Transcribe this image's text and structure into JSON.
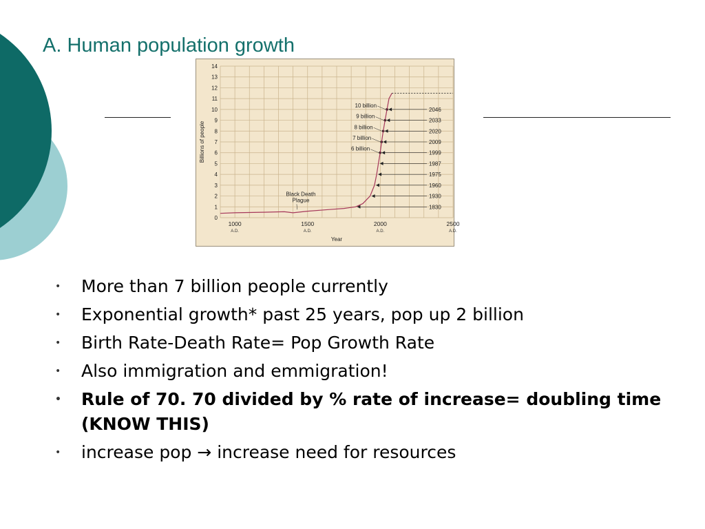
{
  "slide": {
    "title": "A. Human population growth",
    "bullets": [
      {
        "text": "More than 7 billion people currently",
        "bold": false
      },
      {
        "text": "Exponential growth*  past 25 years, pop up 2 billion",
        "bold": false
      },
      {
        "text": "Birth Rate-Death Rate= Pop Growth Rate",
        "bold": false
      },
      {
        "text": "Also immigration and emmigration!",
        "bold": false
      },
      {
        "text": "Rule of 70.  70 divided by % rate of increase= doubling time  (KNOW THIS)",
        "bold": true
      },
      {
        "text": "increase pop → increase need for resources",
        "bold": false
      }
    ],
    "colors": {
      "title": "#14706b",
      "dark_teal": "#0e6a66",
      "light_teal": "#9ccfd2",
      "chart_bg": "#f3e6cc",
      "curve": "#a5375a"
    }
  },
  "chart_data": {
    "type": "line",
    "xlabel": "Year",
    "ylabel": "Billions of people",
    "xlim": [
      900,
      2500
    ],
    "ylim": [
      0,
      14
    ],
    "x_ticks": [
      {
        "value": 1000,
        "label": "1000",
        "sub": "A.D."
      },
      {
        "value": 1500,
        "label": "1500",
        "sub": "A.D."
      },
      {
        "value": 2000,
        "label": "2000",
        "sub": "A.D."
      },
      {
        "value": 2500,
        "label": "2500",
        "sub": "A.D."
      }
    ],
    "y_ticks": [
      0,
      1,
      2,
      3,
      4,
      5,
      6,
      7,
      8,
      9,
      10,
      11,
      12,
      13,
      14
    ],
    "series": [
      {
        "values": [
          [
            900,
            0.4
          ],
          [
            1000,
            0.45
          ],
          [
            1200,
            0.5
          ],
          [
            1340,
            0.55
          ],
          [
            1400,
            0.45
          ],
          [
            1500,
            0.6
          ],
          [
            1650,
            0.75
          ],
          [
            1750,
            0.85
          ],
          [
            1830,
            1.0
          ],
          [
            1880,
            1.3
          ],
          [
            1930,
            2.0
          ],
          [
            1960,
            3.0
          ],
          [
            1975,
            4.0
          ],
          [
            1987,
            5.0
          ],
          [
            1999,
            6.0
          ],
          [
            2009,
            7.0
          ],
          [
            2020,
            8.0
          ],
          [
            2033,
            9.0
          ],
          [
            2046,
            10.0
          ],
          [
            2060,
            11.0
          ],
          [
            2080,
            11.5
          ]
        ]
      },
      {
        "values": [
          [
            2080,
            11.5
          ],
          [
            2500,
            11.5
          ]
        ],
        "style": "dashed"
      }
    ],
    "annotations": [
      {
        "text": "Black Death Plague",
        "x": 1340
      }
    ],
    "milestones": [
      {
        "year": "1830",
        "billions": 1,
        "x": 1830
      },
      {
        "year": "1930",
        "billions": 2,
        "x": 1930
      },
      {
        "year": "1960",
        "billions": 3,
        "x": 1960
      },
      {
        "year": "1975",
        "billions": 4,
        "x": 1975
      },
      {
        "year": "1987",
        "billions": 5,
        "x": 1987
      },
      {
        "year": "1999",
        "billions": 6,
        "x": 1999,
        "label": "6 billion"
      },
      {
        "year": "2009",
        "billions": 7,
        "x": 2009,
        "label": "7 billion"
      },
      {
        "year": "2020",
        "billions": 8,
        "x": 2020,
        "label": "8 billion"
      },
      {
        "year": "2033",
        "billions": 9,
        "x": 2033,
        "label": "9 billion"
      },
      {
        "year": "2046",
        "billions": 10,
        "x": 2046,
        "label": "10 billion"
      }
    ]
  }
}
